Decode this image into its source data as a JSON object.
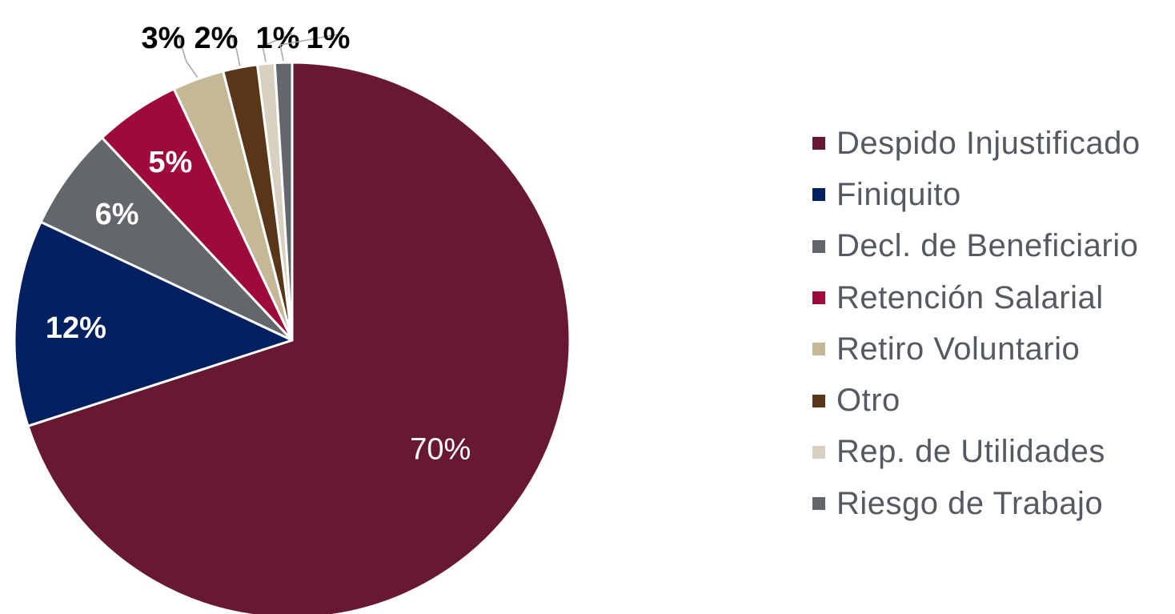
{
  "chart_data": {
    "type": "pie",
    "title": "",
    "categories": [
      "Despido Injustificado",
      "Finiquito",
      "Decl. de Beneficiario",
      "Retención Salarial",
      "Retiro Voluntario",
      "Otro",
      "Rep. de Utilidades",
      "Riesgo de Trabajo"
    ],
    "values": [
      70,
      12,
      6,
      5,
      3,
      2,
      1,
      1
    ],
    "value_labels": [
      "70%",
      "12%",
      "6%",
      "5%",
      "3%",
      "2%",
      "1%",
      "1%"
    ],
    "colors": [
      "#671932",
      "#002060",
      "#63666a",
      "#9e0a3a",
      "#c4b896",
      "#5a3618",
      "#d8d0c0",
      "#63666a"
    ],
    "legend_position": "right"
  }
}
